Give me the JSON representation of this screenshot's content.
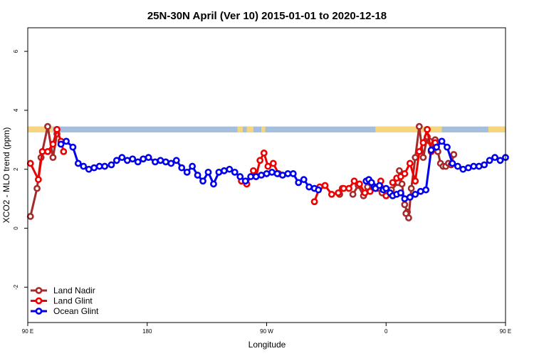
{
  "chart_data": {
    "type": "line",
    "title": "25N-30N April (Ver 10)   2015-01-01 to 2020-12-18",
    "xlabel": "Longitude",
    "ylabel": "XCO2 - MLO trend (ppm)",
    "xlim": [
      90,
      450
    ],
    "ylim": [
      -3.2,
      6.8
    ],
    "x_ticks": [
      {
        "value": 90,
        "label": "90 E"
      },
      {
        "value": 180,
        "label": "180"
      },
      {
        "value": 270,
        "label": "90 W"
      },
      {
        "value": 360,
        "label": "0"
      },
      {
        "value": 450,
        "label": "90 E"
      },
      {
        "value": 540,
        "label": "180"
      }
    ],
    "y_ticks": [
      {
        "value": -2,
        "label": "-2"
      },
      {
        "value": 0,
        "label": "0"
      },
      {
        "value": 2,
        "label": "2"
      },
      {
        "value": 4,
        "label": "4"
      },
      {
        "value": 6,
        "label": "6"
      }
    ],
    "legend_position": "bottom-left",
    "grid": false,
    "land_mask_band": {
      "y_range": [
        3.25,
        3.45
      ],
      "ocean_color": "#a4bedd",
      "land_color": "#f5d57d",
      "land_spans": [
        [
          90,
          109
        ],
        [
          248,
          252
        ],
        [
          255,
          260
        ],
        [
          266,
          269
        ],
        [
          352,
          402
        ],
        [
          437,
          481
        ]
      ]
    },
    "series": [
      {
        "name": "Land Nadir",
        "color": "#a52a2a",
        "segments": [
          {
            "x": [
              92,
              97,
              100,
              105,
              109,
              112
            ],
            "y": [
              0.4,
              1.35,
              2.4,
              3.45,
              2.4,
              3.2
            ]
          },
          {
            "x": [
              325,
              327
            ],
            "y": [
              1.15,
              1.35
            ]
          },
          {
            "x": [
              335,
              339,
              343,
              346,
              350,
              354,
              357,
              361,
              364,
              369
            ],
            "y": [
              1.15,
              1.45,
              1.1,
              1.4,
              1.45,
              1.35,
              1.2,
              1.25,
              1.3,
              1.55
            ]
          },
          {
            "x": [
              370,
              372,
              374,
              376
            ],
            "y": [
              1.95,
              1.5,
              0.8,
              0.55
            ]
          },
          {
            "x": [
              375,
              377,
              379,
              382,
              385,
              388,
              391,
              393,
              395,
              397,
              399,
              401,
              403,
              405,
              407,
              409,
              411
            ],
            "y": [
              0.5,
              0.35,
              1.35,
              2.4,
              3.45,
              2.4,
              3.1,
              2.95,
              2.7,
              3.0,
              2.6,
              2.2,
              2.1,
              2.1,
              2.2,
              2.15,
              2.5
            ]
          }
        ]
      },
      {
        "name": "Land Glint",
        "color": "#ee0000",
        "segments": [
          {
            "x": [
              92,
              98,
              101,
              105,
              109,
              112,
              115,
              117
            ],
            "y": [
              2.2,
              1.65,
              2.6,
              2.6,
              2.85,
              3.35,
              2.95,
              2.6
            ]
          },
          {
            "x": [
              251,
              255,
              260,
              262,
              265,
              268,
              271,
              275,
              279
            ],
            "y": [
              1.6,
              1.5,
              1.95,
              1.75,
              2.3,
              2.55,
              2.1,
              2.2,
              1.85
            ]
          },
          {
            "x": [
              306,
              310,
              314,
              319,
              324,
              328,
              332,
              336,
              340,
              344,
              348,
              352,
              356,
              360,
              364
            ],
            "y": [
              0.9,
              1.4,
              1.45,
              1.15,
              1.2,
              1.35,
              1.35,
              1.6,
              1.5,
              1.2,
              1.25,
              1.35,
              1.6,
              1.1,
              1.15
            ]
          },
          {
            "x": [
              365,
              368,
              371,
              374,
              378,
              382,
              385,
              388,
              391,
              394,
              397
            ],
            "y": [
              1.55,
              1.7,
              1.75,
              1.85,
              2.2,
              1.6,
              2.6,
              2.9,
              3.35,
              2.6,
              2.9
            ]
          }
        ]
      },
      {
        "name": "Ocean Glint",
        "color": "#0000ee",
        "segments": [
          {
            "x": [
              115,
              119,
              124,
              128,
              132,
              136,
              140,
              144,
              148,
              153,
              157,
              161,
              165,
              169,
              173,
              177,
              181,
              186,
              190,
              194,
              198,
              202,
              206,
              210,
              214,
              218,
              222,
              226,
              230,
              234,
              238,
              242,
              246,
              250,
              254,
              258,
              262,
              266,
              270,
              274,
              278,
              282,
              286,
              290,
              294,
              298,
              302,
              306,
              309
            ],
            "y": [
              2.85,
              2.95,
              2.75,
              2.2,
              2.1,
              2.0,
              2.05,
              2.1,
              2.1,
              2.15,
              2.3,
              2.4,
              2.3,
              2.35,
              2.25,
              2.35,
              2.4,
              2.25,
              2.3,
              2.25,
              2.2,
              2.3,
              2.05,
              1.9,
              2.1,
              1.8,
              1.6,
              1.9,
              1.5,
              1.9,
              1.95,
              2.0,
              1.9,
              1.75,
              1.6,
              1.75,
              1.75,
              1.8,
              1.85,
              1.9,
              1.85,
              1.8,
              1.85,
              1.85,
              1.55,
              1.65,
              1.4,
              1.35,
              1.3
            ]
          },
          {
            "x": [
              345,
              347,
              349,
              351
            ],
            "y": [
              1.6,
              1.65,
              1.55,
              1.4
            ]
          },
          {
            "x": [
              352,
              355,
              358,
              360,
              363,
              365,
              368,
              371,
              374,
              378,
              382,
              386,
              390,
              394,
              398,
              402,
              406,
              410,
              414,
              418,
              422,
              426,
              430,
              434,
              438,
              442,
              446,
              450
            ],
            "y": [
              1.35,
              1.45,
              1.3,
              1.35,
              1.2,
              1.1,
              1.15,
              1.2,
              1.0,
              1.05,
              1.15,
              1.25,
              1.3,
              2.65,
              2.75,
              2.95,
              2.75,
              2.2,
              2.1,
              2.0,
              2.05,
              2.1,
              2.1,
              2.15,
              2.3,
              2.4,
              2.3,
              2.4
            ]
          }
        ]
      }
    ]
  }
}
